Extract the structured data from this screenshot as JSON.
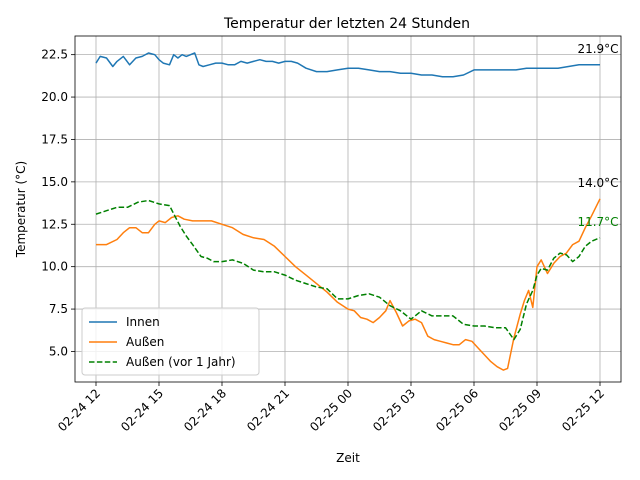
{
  "chart_data": {
    "type": "line",
    "title": "Temperatur der letzten 24 Stunden",
    "xlabel": "Zeit",
    "ylabel": "Temperatur (°C)",
    "xlim_hours": [
      -1.0,
      25.0
    ],
    "ylim": [
      3.2,
      23.6
    ],
    "x_ticks": [
      {
        "h": 0,
        "label": "02-24 12"
      },
      {
        "h": 3,
        "label": "02-24 15"
      },
      {
        "h": 6,
        "label": "02-24 18"
      },
      {
        "h": 9,
        "label": "02-24 21"
      },
      {
        "h": 12,
        "label": "02-25 00"
      },
      {
        "h": 15,
        "label": "02-25 03"
      },
      {
        "h": 18,
        "label": "02-25 06"
      },
      {
        "h": 21,
        "label": "02-25 09"
      },
      {
        "h": 24,
        "label": "02-25 12"
      }
    ],
    "y_ticks": [
      {
        "v": 5.0,
        "label": "5.0"
      },
      {
        "v": 7.5,
        "label": "7.5"
      },
      {
        "v": 10.0,
        "label": "10.0"
      },
      {
        "v": 12.5,
        "label": "12.5"
      },
      {
        "v": 15.0,
        "label": "15.0"
      },
      {
        "v": 17.5,
        "label": "17.5"
      },
      {
        "v": 20.0,
        "label": "20.0"
      },
      {
        "v": 22.5,
        "label": "22.5"
      }
    ],
    "grid": true,
    "legend_position": "lower-left",
    "series": [
      {
        "name": "Innen",
        "color": "#1f77b4",
        "dash": "solid",
        "end_label": "21.9°C",
        "end_label_color": "#000000",
        "x": [
          0.0,
          0.2,
          0.5,
          0.8,
          1.0,
          1.3,
          1.6,
          1.9,
          2.2,
          2.5,
          2.8,
          3.0,
          3.2,
          3.5,
          3.7,
          3.9,
          4.1,
          4.3,
          4.5,
          4.7,
          4.9,
          5.1,
          5.4,
          5.7,
          6.0,
          6.3,
          6.6,
          6.9,
          7.2,
          7.5,
          7.8,
          8.1,
          8.4,
          8.7,
          9.0,
          9.3,
          9.6,
          10.0,
          10.5,
          11.0,
          11.5,
          12.0,
          12.5,
          13.0,
          13.5,
          14.0,
          14.5,
          15.0,
          15.5,
          16.0,
          16.5,
          17.0,
          17.5,
          18.0,
          18.5,
          19.0,
          19.5,
          20.0,
          20.5,
          21.0,
          21.5,
          22.0,
          22.5,
          23.0,
          23.5,
          24.0
        ],
        "y": [
          22.0,
          22.4,
          22.3,
          21.8,
          22.1,
          22.4,
          21.9,
          22.3,
          22.4,
          22.6,
          22.5,
          22.2,
          22.0,
          21.9,
          22.5,
          22.3,
          22.5,
          22.4,
          22.5,
          22.6,
          21.9,
          21.8,
          21.9,
          22.0,
          22.0,
          21.9,
          21.9,
          22.1,
          22.0,
          22.1,
          22.2,
          22.1,
          22.1,
          22.0,
          22.1,
          22.1,
          22.0,
          21.7,
          21.5,
          21.5,
          21.6,
          21.7,
          21.7,
          21.6,
          21.5,
          21.5,
          21.4,
          21.4,
          21.3,
          21.3,
          21.2,
          21.2,
          21.3,
          21.6,
          21.6,
          21.6,
          21.6,
          21.6,
          21.7,
          21.7,
          21.7,
          21.7,
          21.8,
          21.9,
          21.9,
          21.9
        ]
      },
      {
        "name": "Außen",
        "color": "#ff7f0e",
        "dash": "solid",
        "end_label": "14.0°C",
        "end_label_color": "#000000",
        "x": [
          0.0,
          0.5,
          1.0,
          1.3,
          1.6,
          1.9,
          2.2,
          2.5,
          2.8,
          3.0,
          3.3,
          3.6,
          3.9,
          4.2,
          4.6,
          5.0,
          5.5,
          6.0,
          6.5,
          7.0,
          7.5,
          8.0,
          8.5,
          9.0,
          9.5,
          10.0,
          10.5,
          11.0,
          11.5,
          12.0,
          12.3,
          12.6,
          12.9,
          13.2,
          13.5,
          13.8,
          14.0,
          14.3,
          14.6,
          14.9,
          15.2,
          15.5,
          15.8,
          16.1,
          16.4,
          16.7,
          17.0,
          17.3,
          17.6,
          17.9,
          18.2,
          18.5,
          18.8,
          19.1,
          19.4,
          19.6,
          19.9,
          20.2,
          20.4,
          20.6,
          20.8,
          21.0,
          21.2,
          21.5,
          21.8,
          22.1,
          22.4,
          22.7,
          23.0,
          23.3,
          23.6,
          24.0
        ],
        "y": [
          11.3,
          11.3,
          11.6,
          12.0,
          12.3,
          12.3,
          12.0,
          12.0,
          12.5,
          12.7,
          12.6,
          12.9,
          13.0,
          12.8,
          12.7,
          12.7,
          12.7,
          12.5,
          12.3,
          11.9,
          11.7,
          11.6,
          11.2,
          10.6,
          10.0,
          9.5,
          9.0,
          8.5,
          7.9,
          7.5,
          7.4,
          7.0,
          6.9,
          6.7,
          7.0,
          7.4,
          8.0,
          7.3,
          6.5,
          6.8,
          6.9,
          6.7,
          5.9,
          5.7,
          5.6,
          5.5,
          5.4,
          5.4,
          5.7,
          5.6,
          5.2,
          4.8,
          4.4,
          4.1,
          3.9,
          4.0,
          5.8,
          7.2,
          8.0,
          8.6,
          7.6,
          10.0,
          10.4,
          9.6,
          10.2,
          10.6,
          10.8,
          11.3,
          11.5,
          12.3,
          13.0,
          14.0
        ]
      },
      {
        "name": "Außen (vor 1 Jahr)",
        "color": "#008000",
        "dash": "dashed",
        "end_label": "11.7°C",
        "end_label_color": "#008000",
        "x": [
          0.0,
          0.5,
          1.0,
          1.5,
          2.0,
          2.5,
          3.0,
          3.5,
          4.0,
          4.3,
          4.6,
          5.0,
          5.3,
          5.6,
          6.0,
          6.5,
          7.0,
          7.5,
          8.0,
          8.5,
          9.0,
          9.5,
          10.0,
          10.5,
          11.0,
          11.5,
          12.0,
          12.5,
          13.0,
          13.5,
          14.0,
          14.5,
          15.0,
          15.5,
          16.0,
          16.5,
          17.0,
          17.5,
          18.0,
          18.5,
          19.0,
          19.5,
          19.9,
          20.2,
          20.5,
          20.8,
          21.0,
          21.2,
          21.5,
          21.8,
          22.1,
          22.4,
          22.7,
          23.0,
          23.3,
          23.6,
          24.0
        ],
        "y": [
          13.1,
          13.3,
          13.5,
          13.5,
          13.8,
          13.9,
          13.7,
          13.6,
          12.4,
          11.8,
          11.3,
          10.6,
          10.5,
          10.3,
          10.3,
          10.4,
          10.2,
          9.8,
          9.7,
          9.7,
          9.5,
          9.2,
          9.0,
          8.8,
          8.7,
          8.1,
          8.1,
          8.3,
          8.4,
          8.2,
          7.7,
          7.4,
          6.9,
          7.4,
          7.1,
          7.1,
          7.1,
          6.6,
          6.5,
          6.5,
          6.4,
          6.4,
          5.7,
          6.3,
          7.8,
          8.6,
          9.5,
          9.9,
          9.8,
          10.5,
          10.8,
          10.7,
          10.3,
          10.6,
          11.2,
          11.5,
          11.7
        ]
      }
    ]
  }
}
